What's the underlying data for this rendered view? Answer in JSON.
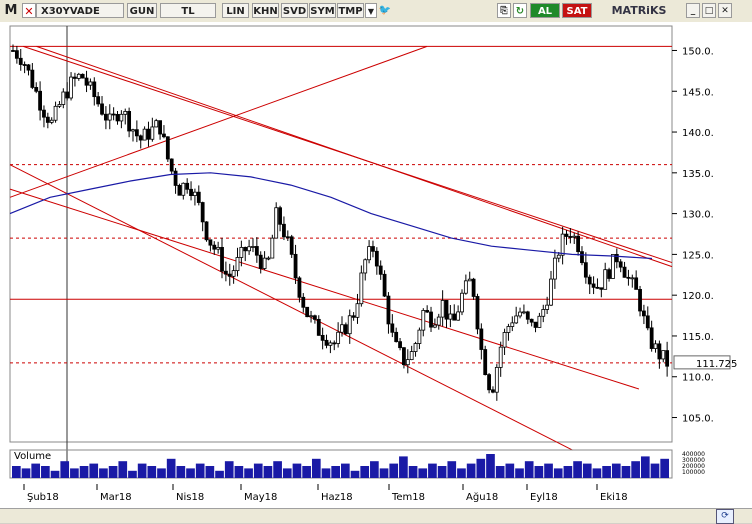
{
  "toolbar": {
    "m_button": "M",
    "symbol": "X30YVADE",
    "buttons": [
      "GUN",
      "TL",
      "LIN",
      "KHN",
      "SVD",
      "SYM",
      "TMP"
    ],
    "buy_label": "AL",
    "sell_label": "SAT",
    "brand": "MATRiKS"
  },
  "volume_label": "Volume",
  "volume_ticks": [
    "400000",
    "300000",
    "200000",
    "100000"
  ],
  "last_price_label": "111.725",
  "colors": {
    "candle": "#000000",
    "trendline": "#cc0000",
    "ma": "#1a1aa6",
    "volume": "#1a1aa6",
    "last_price_bg": "#ffffff"
  },
  "chart_data": {
    "type": "candlestick",
    "ylim": [
      102,
      153
    ],
    "y_ticks": [
      105,
      110,
      115,
      120,
      125,
      130,
      135,
      140,
      145,
      150
    ],
    "x_labels": [
      "Şub18",
      "Mar18",
      "Nis18",
      "May18",
      "Haz18",
      "Tem18",
      "Ağu18",
      "Eyl18",
      "Eki18"
    ],
    "horizontal_levels": [
      {
        "value": 150.5,
        "style": "solid"
      },
      {
        "value": 136,
        "style": "dashed"
      },
      {
        "value": 127,
        "style": "dashed"
      },
      {
        "value": 119.5,
        "style": "solid"
      },
      {
        "value": 111.7,
        "style": "dashed"
      }
    ],
    "close_path": [
      150,
      149,
      146,
      143,
      141,
      144,
      146,
      147,
      145,
      143,
      141,
      143,
      141,
      139,
      140,
      141,
      136,
      133,
      134,
      131,
      127,
      125,
      122,
      124,
      126,
      125,
      123,
      130,
      127,
      122,
      118,
      116,
      115,
      114,
      116,
      118,
      124,
      126,
      120,
      114,
      112,
      113,
      118,
      117,
      119,
      116,
      120,
      122,
      113,
      108,
      114,
      117,
      118,
      116,
      117,
      121,
      126,
      128,
      126,
      122,
      121,
      123,
      125,
      122,
      120,
      115,
      113,
      111.7
    ],
    "ma_path": [
      130,
      132,
      133,
      134,
      134.8,
      135,
      134.5,
      133.5,
      132,
      130,
      128.5,
      127,
      126,
      125.5,
      125,
      124.8,
      124.5
    ],
    "volume": [
      0.5,
      0.4,
      0.6,
      0.5,
      0.3,
      0.7,
      0.4,
      0.5,
      0.6,
      0.4,
      0.5,
      0.7,
      0.3,
      0.6,
      0.5,
      0.4,
      0.8,
      0.5,
      0.4,
      0.6,
      0.5,
      0.3,
      0.7,
      0.5,
      0.4,
      0.6,
      0.5,
      0.7,
      0.4,
      0.6,
      0.5,
      0.8,
      0.4,
      0.5,
      0.6,
      0.3,
      0.5,
      0.7,
      0.4,
      0.6,
      0.9,
      0.5,
      0.4,
      0.6,
      0.5,
      0.7,
      0.4,
      0.6,
      0.8,
      1.0,
      0.5,
      0.6,
      0.4,
      0.7,
      0.5,
      0.6,
      0.4,
      0.5,
      0.7,
      0.6,
      0.4,
      0.5,
      0.6,
      0.5,
      0.7,
      0.9,
      0.6,
      0.8
    ]
  }
}
